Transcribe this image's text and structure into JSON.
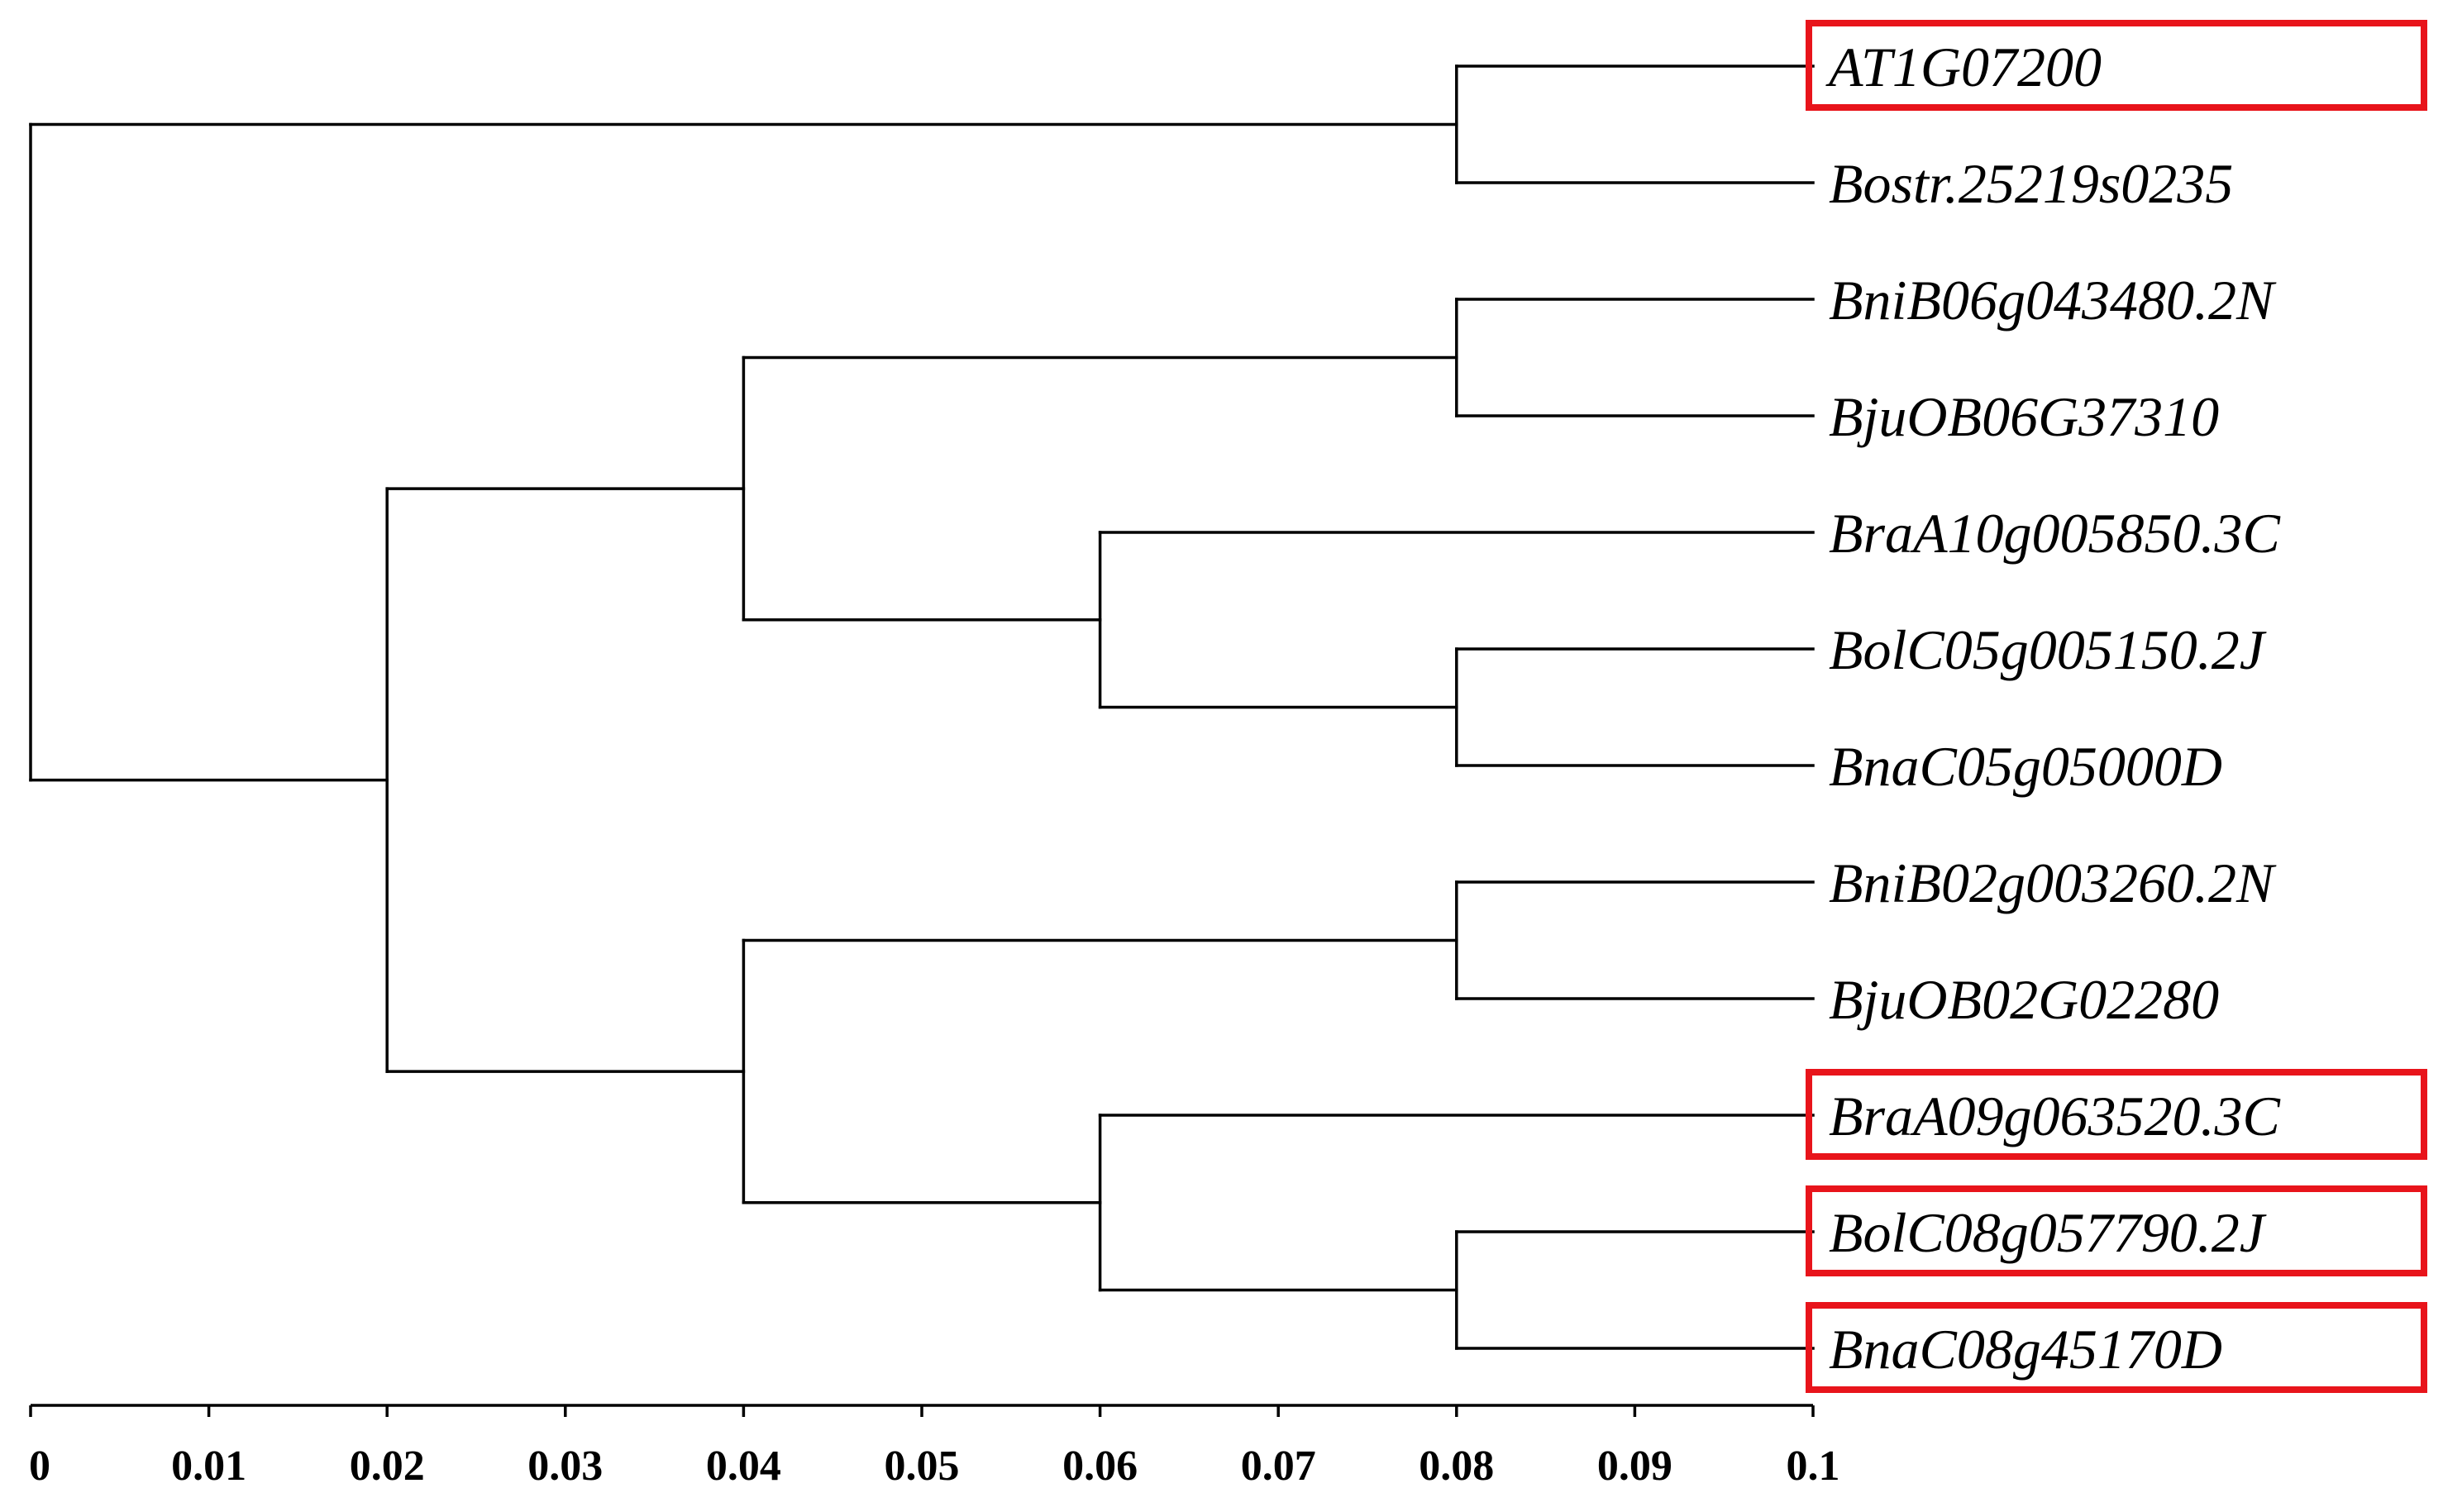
{
  "chart_data": {
    "type": "dendrogram",
    "title": "",
    "xlabel": "",
    "ylabel": "",
    "xlim": [
      0,
      0.1
    ],
    "x_ticks": [
      "0",
      "0.01",
      "0.02",
      "0.03",
      "0.04",
      "0.05",
      "0.06",
      "0.07",
      "0.08",
      "0.09",
      "0.1"
    ],
    "leaves": [
      {
        "name": "AT1G07200",
        "highlighted": true
      },
      {
        "name": "Bostr.25219s0235",
        "highlighted": false
      },
      {
        "name": "BniB06g043480.2N",
        "highlighted": false
      },
      {
        "name": "BjuOB06G37310",
        "highlighted": false
      },
      {
        "name": "BraA10g005850.3C",
        "highlighted": false
      },
      {
        "name": "BolC05g005150.2J",
        "highlighted": false
      },
      {
        "name": "BnaC05g05000D",
        "highlighted": false
      },
      {
        "name": "BniB02g003260.2N",
        "highlighted": false
      },
      {
        "name": "BjuOB02G02280",
        "highlighted": false
      },
      {
        "name": "BraA09g063520.3C",
        "highlighted": true
      },
      {
        "name": "BolC08g057790.2J",
        "highlighted": true
      },
      {
        "name": "BnaC08g45170D",
        "highlighted": true
      }
    ],
    "nodes": [
      {
        "id": "n_at_bos",
        "height": 0.08,
        "children": [
          "AT1G07200",
          "Bostr.25219s0235"
        ]
      },
      {
        "id": "n_b06",
        "height": 0.08,
        "children": [
          "BniB06g043480.2N",
          "BjuOB06G37310"
        ]
      },
      {
        "id": "n_c05",
        "height": 0.08,
        "children": [
          "BolC05g005150.2J",
          "BnaC05g05000D"
        ]
      },
      {
        "id": "n_a10",
        "height": 0.06,
        "children": [
          "BraA10g005850.3C",
          "n_c05"
        ]
      },
      {
        "id": "n_g1",
        "height": 0.04,
        "children": [
          "n_b06",
          "n_a10"
        ]
      },
      {
        "id": "n_b02",
        "height": 0.08,
        "children": [
          "BniB02g003260.2N",
          "BjuOB02G02280"
        ]
      },
      {
        "id": "n_c08",
        "height": 0.08,
        "children": [
          "BolC08g057790.2J",
          "BnaC08g45170D"
        ]
      },
      {
        "id": "n_a09",
        "height": 0.06,
        "children": [
          "BraA09g063520.3C",
          "n_c08"
        ]
      },
      {
        "id": "n_g2",
        "height": 0.04,
        "children": [
          "n_b02",
          "n_a09"
        ]
      },
      {
        "id": "n_bras",
        "height": 0.02,
        "children": [
          "n_g1",
          "n_g2"
        ]
      },
      {
        "id": "root",
        "height": 0.0,
        "children": [
          "n_at_bos",
          "n_bras"
        ]
      }
    ],
    "axis_orientation": "root-left",
    "highlight_color": "#e8141b",
    "line_color": "#000000"
  }
}
